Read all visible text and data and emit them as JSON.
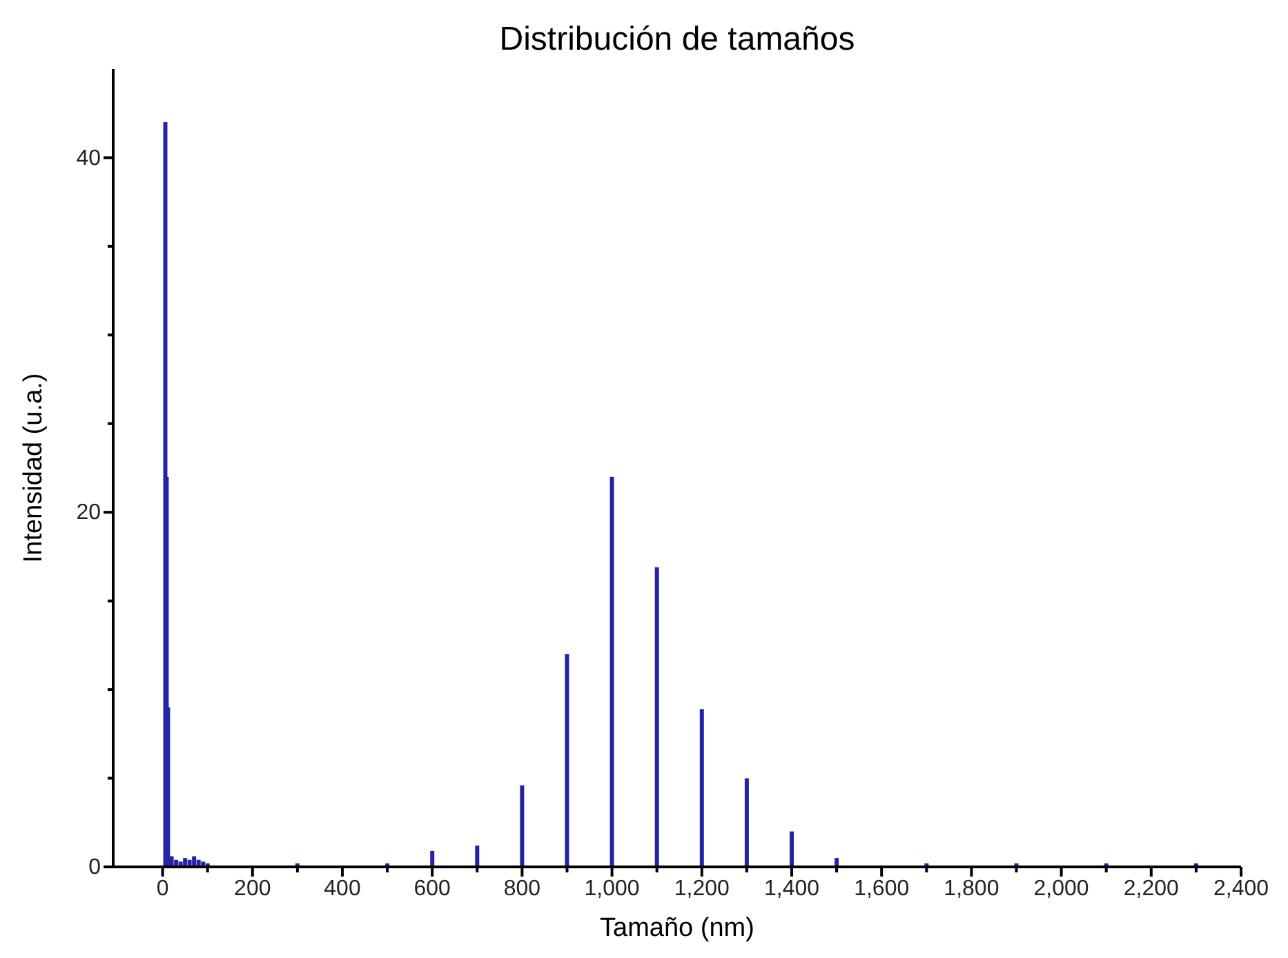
{
  "chart_data": {
    "type": "bar",
    "title": "Distribución de tamaños",
    "xlabel": "Tamaño (nm)",
    "ylabel": "Intensidad (u.a.)",
    "x": [
      6,
      9,
      12,
      20,
      30,
      40,
      50,
      60,
      70,
      80,
      90,
      100,
      300,
      500,
      600,
      700,
      800,
      900,
      1000,
      1100,
      1200,
      1300,
      1400,
      1500,
      1700,
      1900,
      2100,
      2300
    ],
    "series": [
      {
        "color": "#2424a8",
        "values": [
          42,
          22,
          9,
          0.6,
          0.4,
          0.3,
          0.5,
          0.4,
          0.6,
          0.4,
          0.3,
          0.2,
          0.2,
          0.2,
          0.9,
          1.2,
          4.6,
          12,
          22,
          16.9,
          8.9,
          5,
          2,
          0.5,
          0.2,
          0.2,
          0.2,
          0.2
        ]
      }
    ],
    "xlim": [
      -110,
      2400
    ],
    "xticks": [
      0,
      {
        "value": 100,
        "label": null
      },
      200,
      {
        "value": 300,
        "label": null
      },
      400,
      {
        "value": 500,
        "label": null
      },
      600,
      {
        "value": 700,
        "label": null
      },
      800,
      {
        "value": 900,
        "label": null
      },
      {
        "value": 1000,
        "label": "1,000"
      },
      {
        "value": 1100,
        "label": null
      },
      {
        "value": 1200,
        "label": "1,200"
      },
      {
        "value": 1300,
        "label": null
      },
      {
        "value": 1400,
        "label": "1,400"
      },
      {
        "value": 1500,
        "label": null
      },
      {
        "value": 1600,
        "label": "1,600"
      },
      {
        "value": 1700,
        "label": null
      },
      {
        "value": 1800,
        "label": "1,800"
      },
      {
        "value": 1900,
        "label": null
      },
      {
        "value": 2000,
        "label": "2,000"
      },
      {
        "value": 2100,
        "label": null
      },
      {
        "value": 2200,
        "label": "2,200"
      },
      {
        "value": 2300,
        "label": null
      },
      {
        "value": 2400,
        "label": "2,400"
      }
    ],
    "ylim": [
      0,
      45
    ],
    "yticks": [
      0,
      {
        "value": 5,
        "label": null
      },
      {
        "value": 10,
        "label": null
      },
      {
        "value": 15,
        "label": null
      },
      20,
      {
        "value": 25,
        "label": null
      },
      {
        "value": 30,
        "label": null
      },
      {
        "value": 35,
        "label": null
      },
      40
    ],
    "grid": false
  }
}
